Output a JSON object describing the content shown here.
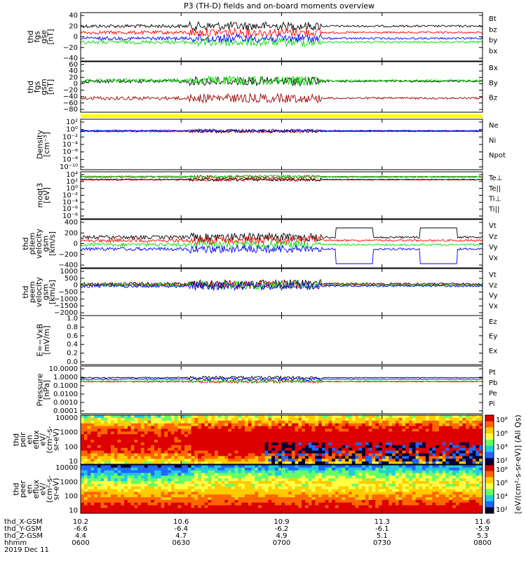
{
  "chart_data": {
    "title": "P3 (TH-D) fields and on-board moments overview",
    "type": "line",
    "time_axis": {
      "tick_labels": [
        "0600",
        "0630",
        "0700",
        "0730",
        "0800"
      ],
      "rows": [
        {
          "name": "thd_X-GSM",
          "values": [
            "10.2",
            "10.6",
            "10.9",
            "11.3",
            "11.6"
          ]
        },
        {
          "name": "thd_Y-GSM",
          "values": [
            "-6.6",
            "-6.4",
            "-6.2",
            "-6.1",
            "-5.9"
          ]
        },
        {
          "name": "thd_Z-GSM",
          "values": [
            "4.4",
            "4.7",
            "4.9",
            "5.1",
            "5.3"
          ]
        },
        {
          "name": "hhmm",
          "values": [
            "0600",
            "0630",
            "0700",
            "0730",
            "0800"
          ]
        }
      ],
      "date": "2019 Dec 11",
      "range": [
        "06:00",
        "08:00"
      ]
    },
    "panels": [
      {
        "id": "fgs_gse",
        "ylabel_lines": [
          "thd",
          "fgs",
          "gse",
          "[nT]"
        ],
        "yticks": [
          "40",
          "20",
          "0",
          "−20",
          "−40"
        ],
        "ylim": [
          -40,
          40
        ],
        "series": [
          {
            "name": "Bt",
            "color": "#000000",
            "level": 20
          },
          {
            "name": "bz",
            "color": "#ff0000",
            "level": 8
          },
          {
            "name": "by",
            "color": "#00dd00",
            "level": -10
          },
          {
            "name": "bx",
            "color": "#0000ff",
            "level": -3
          }
        ]
      },
      {
        "id": "fgs_gsm",
        "ylabel_lines": [
          "thd",
          "fgs",
          "gsm",
          "[nT]"
        ],
        "yticks": [
          "60",
          "40",
          "20",
          "0",
          "−20",
          "−40",
          "−60",
          "−80"
        ],
        "ylim": [
          -80,
          60
        ],
        "series": [
          {
            "name": "Bx",
            "color": "#000000",
            "level": 8
          },
          {
            "name": "By",
            "color": "#00dd00",
            "level": 10
          },
          {
            "name": "Bz",
            "color": "#990000",
            "level": -45
          }
        ]
      },
      {
        "id": "density",
        "ylabel_lines": [
          "Density",
          "[cm⁻³]"
        ],
        "yticks": [
          "10²",
          "10⁰",
          "10⁻²",
          "10⁻⁴",
          "10⁻⁶",
          "10⁻⁸",
          "10⁻¹⁰"
        ],
        "log": true,
        "series": [
          {
            "name": "Ne",
            "color": "#ff0000",
            "level": 0.3
          },
          {
            "name": "Ni",
            "color": "#000000",
            "level": 0.4
          },
          {
            "name": "Npot",
            "color": "#0000ff",
            "level": 0.5
          }
        ]
      },
      {
        "id": "temperature",
        "ylabel_lines": [
          "moqt3",
          "[eV]"
        ],
        "yticks": [
          "10⁴",
          "10²",
          "10⁰",
          "10⁻²",
          "10⁻⁴",
          "10⁻⁶",
          "10⁻⁸"
        ],
        "log": true,
        "series": [
          {
            "name": "Te⊥",
            "color": "#ff0000",
            "level": 300
          },
          {
            "name": "Te||",
            "color": "#000000",
            "level": 400
          },
          {
            "name": "Ti⊥",
            "color": "#990000",
            "level": 2000
          },
          {
            "name": "Ti||",
            "color": "#00dd00",
            "level": 3000
          }
        ]
      },
      {
        "id": "ptiem_velocity",
        "ylabel_lines": [
          "thd",
          "ptiem",
          "velocity",
          "gsm",
          "[km/s]"
        ],
        "yticks": [
          "400",
          "200",
          "0",
          "−200",
          "−400"
        ],
        "ylim": [
          -400,
          400
        ],
        "series": [
          {
            "name": "Vt",
            "color": "#000000",
            "level": 120
          },
          {
            "name": "Vz",
            "color": "#ff0000",
            "level": 60
          },
          {
            "name": "Vy",
            "color": "#00dd00",
            "level": -20
          },
          {
            "name": "Vx",
            "color": "#0000ff",
            "level": -100
          }
        ]
      },
      {
        "id": "peem_velocity",
        "ylabel_lines": [
          "thd",
          "peem",
          "velocity",
          "gsm",
          "[km/s]"
        ],
        "yticks": [
          "1000",
          "500",
          "0",
          "−500",
          "−1000",
          "−1500",
          "−2000"
        ],
        "ylim": [
          -2000,
          1000
        ],
        "series": [
          {
            "name": "Vt",
            "color": "#000000",
            "level": 100
          },
          {
            "name": "Vz",
            "color": "#ff0000",
            "level": 30
          },
          {
            "name": "Vy",
            "color": "#00dd00",
            "level": 0
          },
          {
            "name": "Vx",
            "color": "#0000ff",
            "level": -60
          }
        ]
      },
      {
        "id": "efield",
        "ylabel_lines": [
          "E=−VxB",
          "[mV/m]"
        ],
        "yticks": [
          "1.0",
          "0.8",
          "0.6",
          "0.4",
          "0.2",
          "0.0"
        ],
        "ylim": [
          0,
          1
        ],
        "series": [
          {
            "name": "Ez",
            "color": "#ff0000"
          },
          {
            "name": "Ey",
            "color": "#00dd00"
          },
          {
            "name": "Ex",
            "color": "#0000ff"
          }
        ]
      },
      {
        "id": "pressure",
        "ylabel_lines": [
          "Pressure",
          "[nPa]"
        ],
        "yticks": [
          "10.0000",
          "1.0000",
          "0.1000",
          "0.0100",
          "0.0010",
          "0.0001"
        ],
        "log": true,
        "series": [
          {
            "name": "Pt",
            "color": "#000000",
            "level": 0.9
          },
          {
            "name": "Pb",
            "color": "#ff0000",
            "level": 0.3
          },
          {
            "name": "Pe",
            "color": "#00dd00",
            "level": 0.35
          },
          {
            "name": "Pi",
            "color": "#0000ff",
            "level": 0.6
          }
        ]
      },
      {
        "id": "peir_spectrogram",
        "type": "heatmap",
        "ylabel_lines": [
          "thd",
          "peir",
          "en",
          "eflux",
          "eV/",
          "(cm²-s-",
          "sr-eV)"
        ],
        "yticks": [
          "10000",
          "1000",
          "100",
          "10"
        ]
      },
      {
        "id": "peer_spectrogram",
        "type": "heatmap",
        "ylabel_lines": [
          "thd",
          "peer",
          "en",
          "eflux",
          "eV/",
          "(cm²-s-",
          "sr-eV)"
        ],
        "yticks": [
          "10000",
          "1000",
          "100",
          "10"
        ]
      }
    ],
    "colorbar": {
      "label": "[eV/(cm²-s-sr-eV)] (All Qs)",
      "ticks_top": [
        "10⁸",
        "10⁶",
        "10⁴",
        "10²"
      ],
      "ticks_bottom": [
        "10⁸",
        "10⁶",
        "10⁴",
        "10²"
      ]
    },
    "colors": {
      "black": "#000000",
      "red": "#ff0000",
      "green": "#00dd00",
      "blue": "#0000ff",
      "darkred": "#990000",
      "yellow": "#ffff00"
    }
  }
}
